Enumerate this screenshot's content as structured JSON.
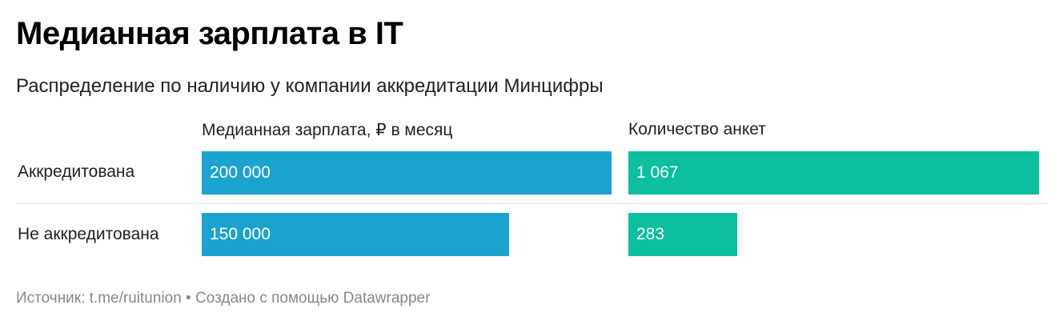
{
  "title": "Медианная зарплата в IT",
  "subtitle": "Распределение по наличию у компании аккредитации Минцифры",
  "footer": {
    "source_text": "Источник: t.me/ruitunion • Создано с помощью Datawrapper"
  },
  "colors": {
    "salary_bar": "#1ba3cf",
    "count_bar": "#0bbf9f"
  },
  "chart_data": {
    "type": "bar",
    "orientation": "horizontal",
    "categories": [
      "Аккредитована",
      "Не аккредитована"
    ],
    "series": [
      {
        "name": "Медианная зарплата, ₽ в месяц",
        "values": [
          200000,
          150000
        ],
        "labels": [
          "200 000",
          "150 000"
        ],
        "max": 200000
      },
      {
        "name": "Количество анкет",
        "values": [
          1067,
          283
        ],
        "labels": [
          "1 067",
          "283"
        ],
        "max": 1067
      }
    ]
  }
}
